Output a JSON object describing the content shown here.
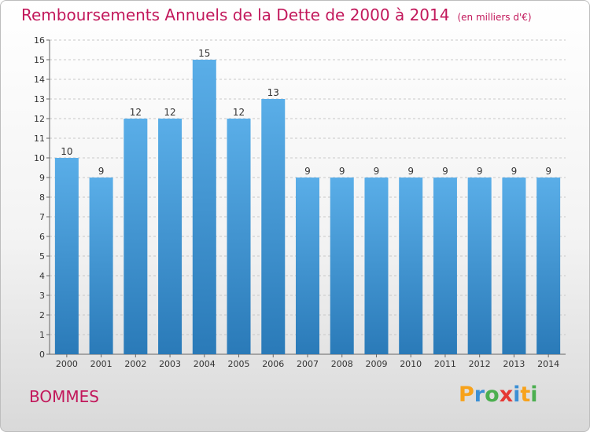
{
  "header": {
    "title": "Remboursements Annuels de la Dette de 2000 à 2014",
    "unit": "(en milliers d'€)"
  },
  "footer": {
    "commune": "BOMMES",
    "logo_text": "Proxiti"
  },
  "colors": {
    "title": "#c2185b",
    "bar_top": "#5aaee8",
    "bar_bottom": "#2a7ab8",
    "grid": "#c8c8c8"
  },
  "chart_data": {
    "type": "bar",
    "categories": [
      "2000",
      "2001",
      "2002",
      "2003",
      "2004",
      "2005",
      "2006",
      "2007",
      "2008",
      "2009",
      "2010",
      "2011",
      "2012",
      "2013",
      "2014"
    ],
    "values": [
      10,
      9,
      12,
      12,
      15,
      12,
      13,
      9,
      9,
      9,
      9,
      9,
      9,
      9,
      9
    ],
    "title": "Remboursements Annuels de la Dette de 2000 à 2014",
    "ylim": [
      0,
      16
    ],
    "yticks": [
      0,
      1,
      2,
      3,
      4,
      5,
      6,
      7,
      8,
      9,
      10,
      11,
      12,
      13,
      14,
      15,
      16
    ],
    "grid": true
  }
}
